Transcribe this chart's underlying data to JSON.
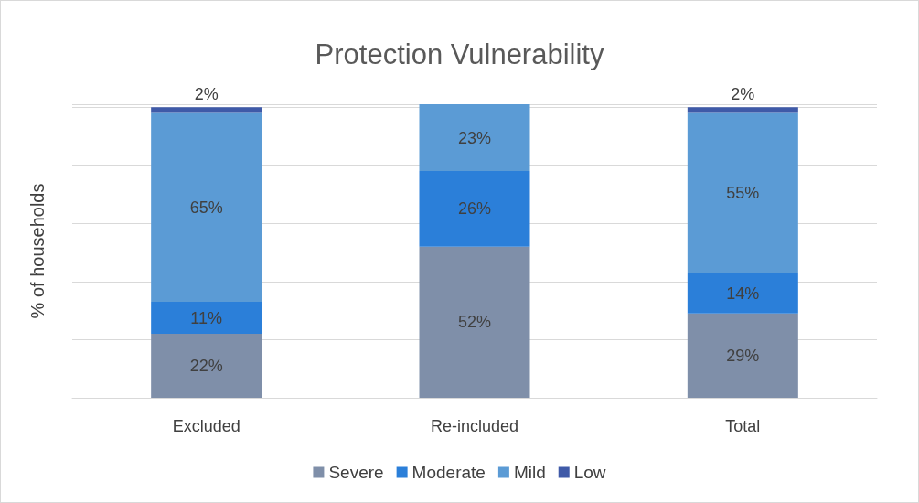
{
  "chart_data": {
    "type": "bar",
    "title": "Protection Vulnerability",
    "ylabel": "% of households",
    "categories": [
      "Excluded",
      "Re-included",
      "Total"
    ],
    "series": [
      {
        "name": "Severe",
        "color": "#7f8fa9",
        "values": [
          22,
          52,
          29
        ],
        "value_labels": [
          "22%",
          "52%",
          "29%"
        ]
      },
      {
        "name": "Moderate",
        "color": "#2b7fd9",
        "values": [
          11,
          26,
          14
        ],
        "value_labels": [
          "11%",
          "26%",
          "14%"
        ]
      },
      {
        "name": "Mild",
        "color": "#5b9bd5",
        "values": [
          65,
          23,
          55
        ],
        "value_labels": [
          "65%",
          "23%",
          "55%"
        ]
      },
      {
        "name": "Low",
        "color": "#3f5aa8",
        "values": [
          2,
          null,
          2
        ],
        "value_labels": [
          "2%",
          null,
          "2%"
        ]
      }
    ],
    "stacked": true,
    "grid": "y",
    "legend": "bottom",
    "tick_labels": "x"
  }
}
